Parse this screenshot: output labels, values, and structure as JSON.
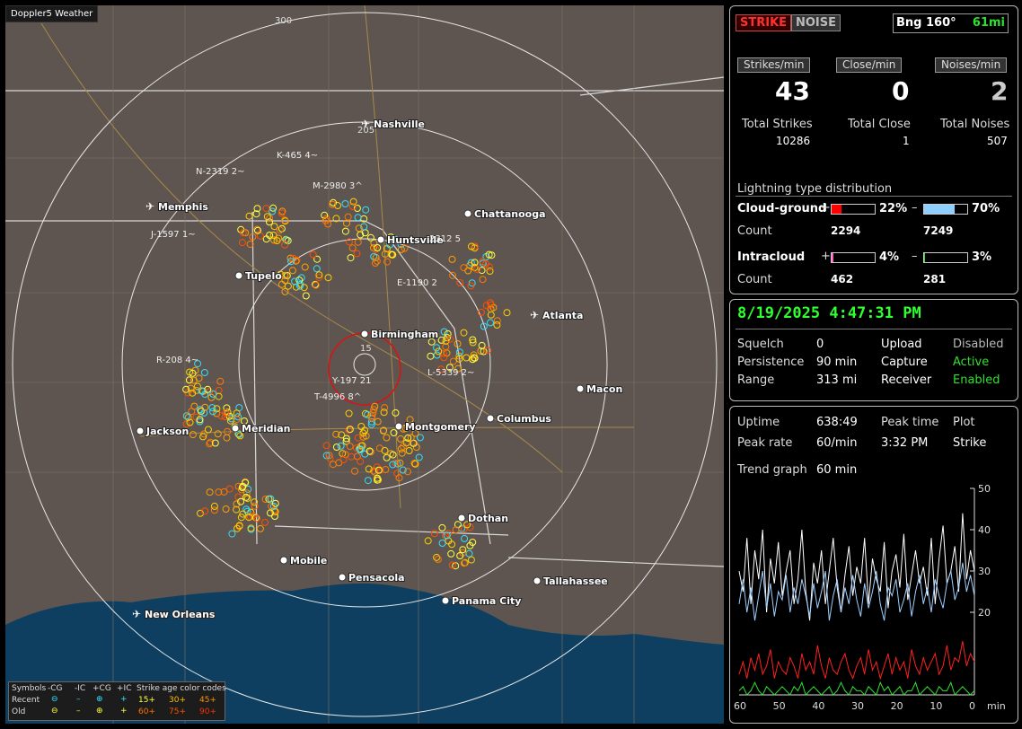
{
  "app": {
    "title": "Doppler5 Weather"
  },
  "map": {
    "range_labels": [
      "300",
      "205",
      "15"
    ],
    "cities": [
      {
        "name": "Nashville",
        "airport": true
      },
      {
        "name": "Memphis",
        "airport": true
      },
      {
        "name": "Chattanooga",
        "airport": false
      },
      {
        "name": "Huntsville",
        "airport": false
      },
      {
        "name": "Tupelo",
        "airport": false
      },
      {
        "name": "Atlanta",
        "airport": true
      },
      {
        "name": "Birmingham",
        "airport": false
      },
      {
        "name": "Macon",
        "airport": false
      },
      {
        "name": "Jackson",
        "airport": false
      },
      {
        "name": "Meridian",
        "airport": false
      },
      {
        "name": "Montgomery",
        "airport": false
      },
      {
        "name": "Columbus",
        "airport": false
      },
      {
        "name": "Dothan",
        "airport": false
      },
      {
        "name": "Mobile",
        "airport": false
      },
      {
        "name": "Pensacola",
        "airport": false
      },
      {
        "name": "Tallahassee",
        "airport": false
      },
      {
        "name": "Panama City",
        "airport": false
      },
      {
        "name": "New Orleans",
        "airport": true
      }
    ],
    "storm_labels": [
      "K-465 4~",
      "N-2319 2~",
      "M-2980 3^",
      "J-1597 1~",
      "2312 5",
      "E-1190 2",
      "R-208 4~",
      "L-5339 2~",
      "Y-197 21",
      "T-4996 8^"
    ],
    "legend": {
      "symbols_label": "Symbols",
      "types": [
        "-CG",
        "-IC",
        "+CG",
        "+IC"
      ],
      "age_label": "Strike age color codes",
      "recent_label": "Recent",
      "old_label": "Old",
      "recent_ages": [
        "15+",
        "30+",
        "45+"
      ],
      "old_ages": [
        "60+",
        "75+",
        "90+"
      ]
    }
  },
  "status": {
    "strike_button": "STRIKE",
    "noise_button": "NOISE",
    "bearing": "Bng 160°",
    "distance": "61mi",
    "strikes_per_min_label": "Strikes/min",
    "close_per_min_label": "Close/min",
    "noises_per_min_label": "Noises/min",
    "strikes_per_min": "43",
    "close_per_min": "0",
    "noises_per_min": "2",
    "total_strikes_label": "Total Strikes",
    "total_close_label": "Total Close",
    "total_noises_label": "Total Noises",
    "total_strikes": "10286",
    "total_close": "1",
    "total_noises": "507",
    "distribution_title": "Lightning type distribution",
    "cloud_ground_label": "Cloud-ground",
    "intracloud_label": "Intracloud",
    "count_label": "Count",
    "plus": "+",
    "minus": "–",
    "cg_pos_pct": "22%",
    "cg_neg_pct": "70%",
    "cg_pos_count": "2294",
    "cg_neg_count": "7249",
    "ic_pos_pct": "4%",
    "ic_neg_pct": "3%",
    "ic_pos_count": "462",
    "ic_neg_count": "281",
    "cg_pos_frac": 0.22,
    "cg_neg_frac": 0.7,
    "ic_pos_frac": 0.04,
    "ic_neg_frac": 0.03
  },
  "settings": {
    "datetime": "8/19/2025 4:47:31 PM",
    "squelch_label": "Squelch",
    "squelch": "0",
    "persistence_label": "Persistence",
    "persistence": "90 min",
    "range_label": "Range",
    "range": "313 mi",
    "upload_label": "Upload",
    "upload": "Disabled",
    "capture_label": "Capture",
    "capture": "Active",
    "receiver_label": "Receiver",
    "receiver": "Enabled"
  },
  "trend": {
    "uptime_label": "Uptime",
    "uptime": "638:49",
    "peak_time_label": "Peak time",
    "peak_time": "3:32 PM",
    "plot_label": "Plot",
    "plot": "Strike",
    "peak_rate_label": "Peak rate",
    "peak_rate": "60/min",
    "trend_graph_label": "Trend graph",
    "trend_graph": "60 min",
    "x_unit": "min"
  },
  "chart_data": {
    "type": "line",
    "title": "",
    "xlabel": "min",
    "ylabel": "",
    "x_ticks": [
      60,
      50,
      40,
      30,
      20,
      10,
      0
    ],
    "y_ticks": [
      50,
      40,
      30,
      20
    ],
    "xlim": [
      60,
      0
    ],
    "ylim": [
      0,
      50
    ],
    "x": [
      60,
      59,
      58,
      57,
      56,
      55,
      54,
      53,
      52,
      51,
      50,
      49,
      48,
      47,
      46,
      45,
      44,
      43,
      42,
      41,
      40,
      39,
      38,
      37,
      36,
      35,
      34,
      33,
      32,
      31,
      30,
      29,
      28,
      27,
      26,
      25,
      24,
      23,
      22,
      21,
      20,
      19,
      18,
      17,
      16,
      15,
      14,
      13,
      12,
      11,
      10,
      9,
      8,
      7,
      6,
      5,
      4,
      3,
      2,
      1,
      0
    ],
    "series": [
      {
        "color": "#ffffff",
        "values": [
          30,
          25,
          38,
          22,
          35,
          28,
          40,
          20,
          33,
          27,
          37,
          24,
          30,
          35,
          22,
          28,
          40,
          25,
          18,
          32,
          27,
          35,
          22,
          30,
          38,
          26,
          20,
          29,
          36,
          24,
          31,
          27,
          38,
          22,
          33,
          28,
          25,
          37,
          21,
          30,
          34,
          26,
          39,
          23,
          29,
          35,
          27,
          31,
          24,
          38,
          22,
          33,
          41,
          27,
          30,
          36,
          25,
          44,
          28,
          35,
          30
        ]
      },
      {
        "color": "#9fd0ff",
        "values": [
          22,
          28,
          20,
          26,
          18,
          24,
          30,
          21,
          27,
          19,
          25,
          23,
          29,
          20,
          26,
          22,
          28,
          24,
          19,
          27,
          21,
          25,
          30,
          18,
          24,
          28,
          20,
          26,
          22,
          29,
          23,
          19,
          27,
          21,
          25,
          30,
          22,
          18,
          26,
          24,
          28,
          20,
          23,
          27,
          19,
          25,
          29,
          22,
          26,
          20,
          28,
          24,
          21,
          27,
          30,
          23,
          26,
          32,
          25,
          29,
          24
        ]
      },
      {
        "color": "#ff2020",
        "values": [
          5,
          8,
          4,
          9,
          6,
          10,
          5,
          7,
          11,
          4,
          8,
          6,
          5,
          9,
          7,
          4,
          10,
          6,
          8,
          5,
          12,
          7,
          4,
          9,
          6,
          5,
          8,
          10,
          6,
          4,
          7,
          9,
          5,
          11,
          6,
          8,
          4,
          7,
          10,
          5,
          9,
          6,
          8,
          4,
          11,
          7,
          5,
          9,
          6,
          8,
          10,
          5,
          7,
          12,
          6,
          9,
          8,
          13,
          7,
          10,
          8
        ]
      },
      {
        "color": "#30e030",
        "values": [
          1,
          2,
          0,
          1,
          3,
          1,
          0,
          2,
          1,
          0,
          1,
          2,
          1,
          0,
          2,
          1,
          3,
          0,
          1,
          2,
          1,
          0,
          1,
          2,
          0,
          1,
          3,
          1,
          0,
          2,
          1,
          1,
          0,
          2,
          1,
          0,
          3,
          1,
          2,
          0,
          1,
          2,
          0,
          1,
          1,
          3,
          0,
          1,
          2,
          1,
          0,
          2,
          1,
          1,
          3,
          0,
          1,
          2,
          1,
          0,
          1
        ]
      }
    ]
  }
}
